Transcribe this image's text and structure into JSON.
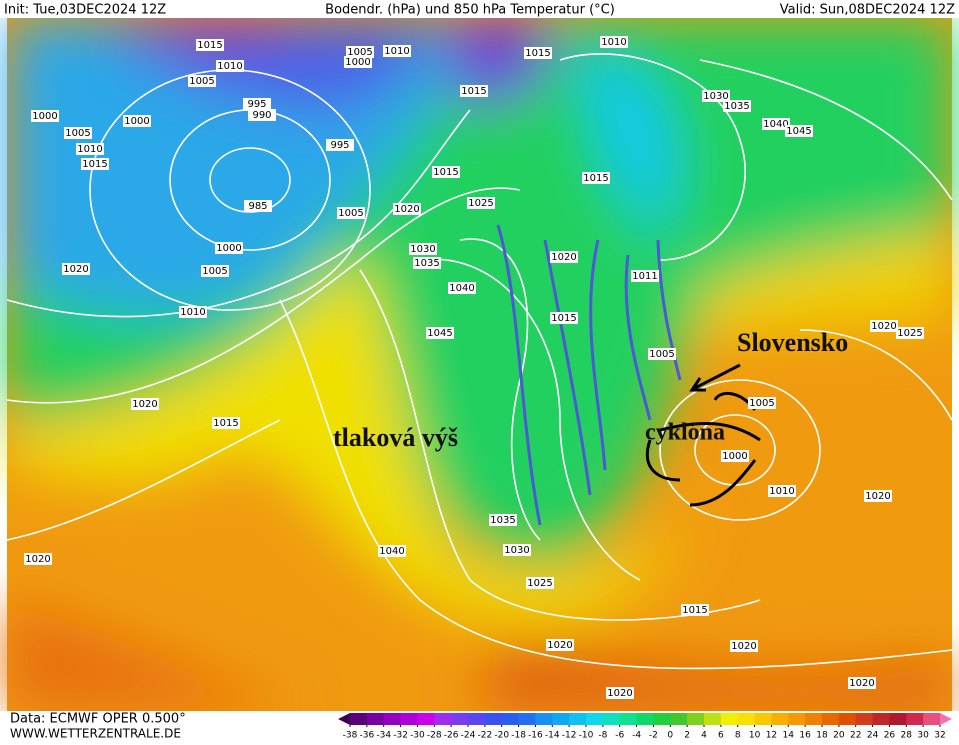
{
  "header": {
    "init": "Init: Tue,03DEC2024 12Z",
    "title": "Bodendr. (hPa) und 850 hPa Temperatur (°C)",
    "valid": "Valid: Sun,08DEC2024 12Z"
  },
  "footer": {
    "data": "Data: ECMWF OPER 0.500°",
    "site": "WWW.WETTERZENTRALE.DE"
  },
  "annotations": {
    "country": "Slovensko",
    "high": "tlaková výš",
    "low": "cyklóna"
  },
  "isobar_labels": [
    1015,
    1005,
    1010,
    1000,
    1015,
    1010,
    1005,
    1010,
    1015,
    995,
    990,
    1000,
    1000,
    1005,
    1010,
    1015,
    995,
    1015,
    1015,
    1030,
    1035,
    1040,
    1045,
    985,
    1005,
    1020,
    1025,
    1000,
    1005,
    1020,
    1030,
    1035,
    1020,
    1040,
    1011,
    1010,
    1015,
    1045,
    1005,
    1020,
    1025,
    1020,
    1015,
    1005,
    1000,
    1010,
    1020,
    1035,
    1030,
    1040,
    1020,
    1025,
    1015,
    1020,
    1020,
    1020,
    1020
  ],
  "colorbar": {
    "ticks": [
      -38,
      -36,
      -34,
      -32,
      -30,
      -28,
      -26,
      -24,
      -22,
      -20,
      -18,
      -16,
      -14,
      -12,
      -10,
      -8,
      -6,
      -4,
      -2,
      0,
      2,
      4,
      6,
      8,
      10,
      12,
      14,
      16,
      18,
      20,
      22,
      24,
      26,
      28,
      30,
      32
    ],
    "colors": [
      "#3c0050",
      "#5a0078",
      "#7800a0",
      "#9400c0",
      "#b000d8",
      "#cc00ec",
      "#a02cf0",
      "#7a3cf0",
      "#5a46f0",
      "#3c50f0",
      "#2a5cf0",
      "#2070f0",
      "#1890f0",
      "#10a8f0",
      "#10c0f0",
      "#10d8e8",
      "#10e0c0",
      "#10e090",
      "#10d868",
      "#20d040",
      "#40c830",
      "#80d020",
      "#c0e010",
      "#f0f000",
      "#f8e000",
      "#f8c800",
      "#f8b000",
      "#f89800",
      "#f08000",
      "#e86800",
      "#e05000",
      "#d03c1c",
      "#c02828",
      "#b01830",
      "#d02850",
      "#e85080",
      "#f070b0"
    ]
  }
}
